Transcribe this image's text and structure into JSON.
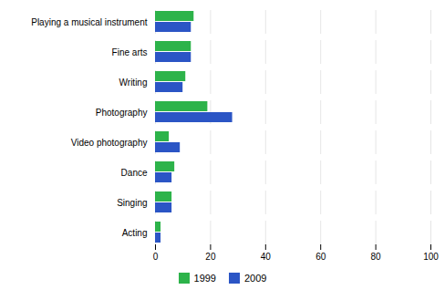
{
  "chart_data": {
    "type": "bar",
    "orientation": "horizontal",
    "categories": [
      "Playing a musical instrument",
      "Fine arts",
      "Writing",
      "Photography",
      "Video photography",
      "Dance",
      "Singing",
      "Acting"
    ],
    "series": [
      {
        "name": "1999",
        "color": "#2db34a",
        "values": [
          14,
          13,
          11,
          19,
          5,
          7,
          6,
          2
        ]
      },
      {
        "name": "2009",
        "color": "#2b55c5",
        "values": [
          13,
          13,
          10,
          28,
          9,
          6,
          6,
          2
        ]
      }
    ],
    "xlim": [
      0,
      100
    ],
    "xticks": [
      0,
      20,
      40,
      60,
      80,
      100
    ],
    "grid": true,
    "legend": "bottom"
  }
}
